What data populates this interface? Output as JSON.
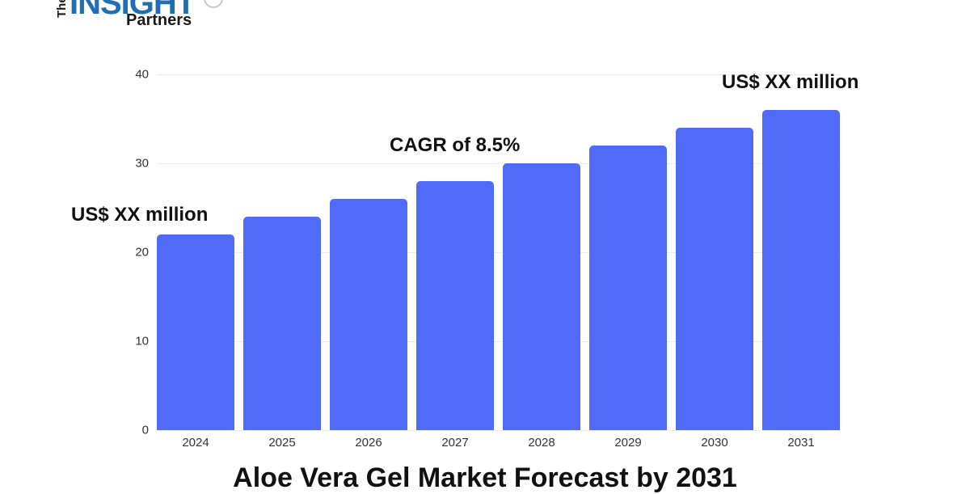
{
  "logo": {
    "the": "The",
    "insight": "INSIGHT",
    "partners": "Partners"
  },
  "chart_data": {
    "type": "bar",
    "title": "Aloe Vera Gel Market Forecast by 2031",
    "xlabel": "",
    "ylabel": "",
    "categories": [
      "2024",
      "2025",
      "2026",
      "2027",
      "2028",
      "2029",
      "2030",
      "2031"
    ],
    "values": [
      22,
      24,
      26,
      28,
      30,
      32,
      34,
      36
    ],
    "ylim": [
      0,
      40
    ],
    "yticks": [
      "0",
      "10",
      "20",
      "30",
      "40"
    ],
    "grid": true,
    "bar_color": "#4f6bf7",
    "annotations": [
      {
        "text": "US$ XX million",
        "near": "2024"
      },
      {
        "text": "CAGR of 8.5%",
        "near": "2027-2028"
      },
      {
        "text": "US$ XX million",
        "near": "2031"
      }
    ]
  }
}
